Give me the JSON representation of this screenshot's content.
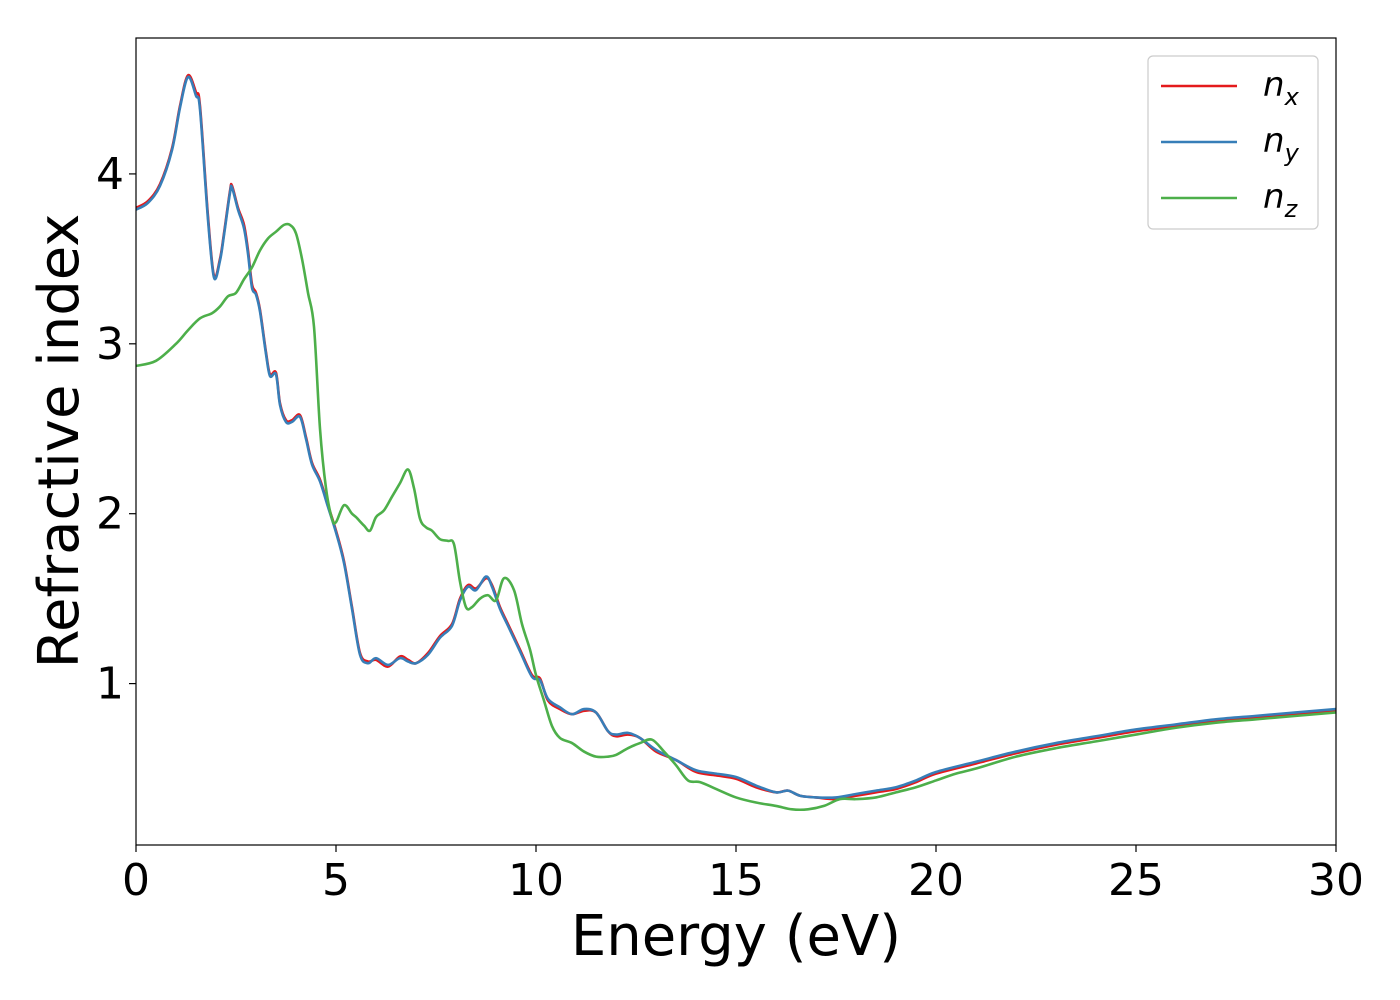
{
  "chart_data": {
    "type": "line",
    "title": "",
    "xlabel": "Energy (eV)",
    "ylabel": "Refractive index",
    "xlim": [
      0,
      30
    ],
    "ylim": [
      0.05,
      4.8
    ],
    "xticks": [
      0,
      5,
      10,
      15,
      20,
      25,
      30
    ],
    "yticks": [
      1,
      2,
      3,
      4
    ],
    "grid": false,
    "legend_position": "top-right",
    "series": [
      {
        "name": "n_x",
        "legend_base": "n",
        "legend_sub": "x",
        "color": "#e41a1c",
        "x": [
          0,
          0.3,
          0.6,
          0.9,
          1.1,
          1.3,
          1.5,
          1.6,
          1.8,
          1.95,
          2.1,
          2.2,
          2.35,
          2.4,
          2.55,
          2.7,
          2.8,
          2.9,
          3.0,
          3.1,
          3.25,
          3.35,
          3.5,
          3.6,
          3.75,
          3.9,
          4.1,
          4.25,
          4.4,
          4.6,
          4.8,
          5.0,
          5.2,
          5.4,
          5.6,
          5.8,
          6.0,
          6.3,
          6.6,
          6.8,
          7.0,
          7.3,
          7.6,
          7.9,
          8.1,
          8.3,
          8.5,
          8.75,
          8.9,
          9.1,
          9.3,
          9.6,
          9.9,
          10.1,
          10.3,
          10.6,
          10.9,
          11.2,
          11.5,
          11.8,
          12.0,
          12.3,
          12.6,
          13.0,
          13.5,
          14.0,
          14.5,
          15.0,
          15.5,
          16.0,
          16.3,
          16.6,
          17.0,
          17.5,
          18.0,
          18.5,
          19.0,
          19.5,
          20.0,
          21.0,
          22.0,
          23.0,
          24.0,
          25.0,
          26.0,
          27.0,
          28.0,
          29.0,
          30.0
        ],
        "y": [
          3.8,
          3.84,
          3.94,
          4.15,
          4.4,
          4.58,
          4.48,
          4.4,
          3.75,
          3.4,
          3.5,
          3.65,
          3.9,
          3.93,
          3.8,
          3.7,
          3.55,
          3.35,
          3.3,
          3.2,
          2.95,
          2.82,
          2.83,
          2.65,
          2.55,
          2.55,
          2.58,
          2.45,
          2.3,
          2.2,
          2.05,
          1.9,
          1.72,
          1.45,
          1.18,
          1.13,
          1.14,
          1.1,
          1.16,
          1.14,
          1.12,
          1.18,
          1.28,
          1.35,
          1.5,
          1.58,
          1.56,
          1.62,
          1.58,
          1.45,
          1.35,
          1.2,
          1.05,
          1.03,
          0.9,
          0.85,
          0.82,
          0.84,
          0.83,
          0.72,
          0.69,
          0.7,
          0.68,
          0.6,
          0.55,
          0.48,
          0.46,
          0.44,
          0.39,
          0.36,
          0.37,
          0.34,
          0.33,
          0.32,
          0.34,
          0.36,
          0.38,
          0.42,
          0.47,
          0.53,
          0.59,
          0.64,
          0.68,
          0.72,
          0.75,
          0.78,
          0.8,
          0.82,
          0.84
        ]
      },
      {
        "name": "n_y",
        "legend_base": "n",
        "legend_sub": "y",
        "color": "#377eb8",
        "x": [
          0,
          0.3,
          0.6,
          0.9,
          1.1,
          1.3,
          1.5,
          1.6,
          1.8,
          1.95,
          2.1,
          2.2,
          2.35,
          2.4,
          2.55,
          2.7,
          2.8,
          2.9,
          3.0,
          3.1,
          3.25,
          3.35,
          3.5,
          3.6,
          3.75,
          3.9,
          4.1,
          4.25,
          4.4,
          4.6,
          4.8,
          5.0,
          5.2,
          5.4,
          5.6,
          5.8,
          6.0,
          6.3,
          6.6,
          6.8,
          7.0,
          7.3,
          7.6,
          7.9,
          8.1,
          8.3,
          8.5,
          8.75,
          8.9,
          9.1,
          9.3,
          9.6,
          9.9,
          10.1,
          10.3,
          10.6,
          10.9,
          11.2,
          11.5,
          11.8,
          12.0,
          12.3,
          12.6,
          13.0,
          13.5,
          14.0,
          14.5,
          15.0,
          15.5,
          16.0,
          16.3,
          16.6,
          17.0,
          17.5,
          18.0,
          18.5,
          19.0,
          19.5,
          20.0,
          21.0,
          22.0,
          23.0,
          24.0,
          25.0,
          26.0,
          27.0,
          28.0,
          29.0,
          30.0
        ],
        "y": [
          3.79,
          3.83,
          3.93,
          4.14,
          4.39,
          4.57,
          4.46,
          4.38,
          3.73,
          3.39,
          3.49,
          3.64,
          3.89,
          3.92,
          3.79,
          3.68,
          3.53,
          3.33,
          3.29,
          3.19,
          2.94,
          2.81,
          2.82,
          2.64,
          2.54,
          2.54,
          2.57,
          2.44,
          2.29,
          2.19,
          2.04,
          1.89,
          1.71,
          1.44,
          1.17,
          1.12,
          1.15,
          1.11,
          1.15,
          1.13,
          1.12,
          1.17,
          1.27,
          1.34,
          1.49,
          1.57,
          1.55,
          1.63,
          1.57,
          1.44,
          1.34,
          1.19,
          1.04,
          1.02,
          0.91,
          0.86,
          0.82,
          0.85,
          0.83,
          0.72,
          0.7,
          0.71,
          0.68,
          0.61,
          0.55,
          0.49,
          0.47,
          0.45,
          0.4,
          0.36,
          0.37,
          0.34,
          0.33,
          0.33,
          0.35,
          0.37,
          0.39,
          0.43,
          0.48,
          0.54,
          0.6,
          0.65,
          0.69,
          0.73,
          0.76,
          0.79,
          0.81,
          0.83,
          0.85
        ]
      },
      {
        "name": "n_z",
        "legend_base": "n",
        "legend_sub": "z",
        "color": "#4daf4a",
        "x": [
          0,
          0.5,
          1.0,
          1.3,
          1.6,
          1.9,
          2.1,
          2.3,
          2.5,
          2.7,
          2.9,
          3.1,
          3.3,
          3.5,
          3.7,
          3.85,
          4.0,
          4.15,
          4.3,
          4.45,
          4.6,
          4.75,
          4.9,
          5.0,
          5.2,
          5.4,
          5.5,
          5.7,
          5.85,
          6.0,
          6.2,
          6.4,
          6.6,
          6.8,
          6.95,
          7.1,
          7.25,
          7.4,
          7.6,
          7.8,
          7.95,
          8.1,
          8.25,
          8.4,
          8.6,
          8.8,
          9.0,
          9.2,
          9.45,
          9.65,
          9.85,
          10.0,
          10.2,
          10.4,
          10.6,
          10.9,
          11.2,
          11.5,
          11.8,
          12.0,
          12.3,
          12.6,
          12.9,
          13.2,
          13.5,
          13.8,
          14.1,
          14.5,
          15.0,
          15.5,
          16.0,
          16.4,
          16.8,
          17.2,
          17.6,
          18.0,
          18.5,
          19.0,
          19.5,
          20.0,
          20.5,
          21.0,
          22.0,
          23.0,
          24.0,
          25.0,
          26.0,
          27.0,
          28.0,
          29.0,
          30.0
        ],
        "y": [
          2.87,
          2.9,
          3.0,
          3.08,
          3.15,
          3.18,
          3.22,
          3.28,
          3.3,
          3.38,
          3.45,
          3.55,
          3.62,
          3.66,
          3.7,
          3.7,
          3.65,
          3.5,
          3.3,
          3.1,
          2.5,
          2.15,
          1.97,
          1.95,
          2.05,
          2.0,
          1.98,
          1.93,
          1.9,
          1.98,
          2.02,
          2.1,
          2.18,
          2.26,
          2.15,
          1.97,
          1.92,
          1.9,
          1.85,
          1.84,
          1.82,
          1.6,
          1.45,
          1.45,
          1.5,
          1.52,
          1.49,
          1.62,
          1.55,
          1.35,
          1.2,
          1.05,
          0.9,
          0.75,
          0.68,
          0.65,
          0.6,
          0.57,
          0.57,
          0.58,
          0.62,
          0.65,
          0.67,
          0.6,
          0.52,
          0.43,
          0.42,
          0.38,
          0.33,
          0.3,
          0.28,
          0.26,
          0.26,
          0.28,
          0.32,
          0.32,
          0.33,
          0.36,
          0.39,
          0.43,
          0.47,
          0.5,
          0.57,
          0.62,
          0.66,
          0.7,
          0.74,
          0.77,
          0.79,
          0.81,
          0.83
        ]
      }
    ]
  }
}
